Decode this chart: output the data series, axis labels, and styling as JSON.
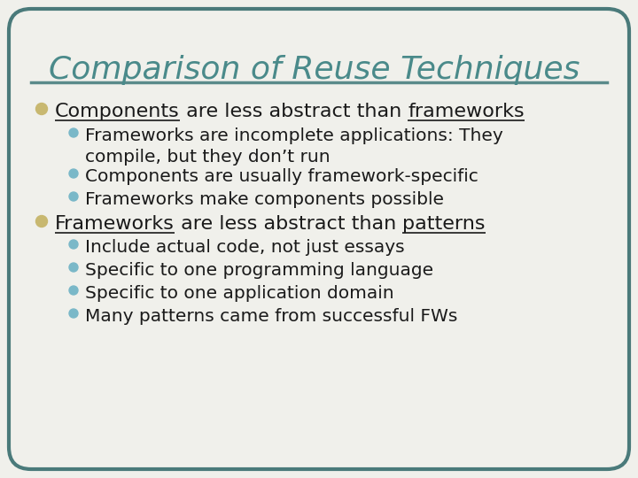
{
  "title": "Comparison of Reuse Techniques",
  "title_color": "#4a8a8a",
  "title_fontsize": 26,
  "background_color": "#f0f0eb",
  "border_color": "#4a7a7a",
  "divider_color": "#5a8a8a",
  "bullet1_color": "#c8b870",
  "bullet2_color": "#7ab8c8",
  "sub_bullets1": [
    "Frameworks are incomplete applications: They",
    "   compile, but they don’t run",
    "Components are usually framework-specific",
    "Frameworks make components possible"
  ],
  "sub_bullets2": [
    "Include actual code, not just essays",
    "Specific to one programming language",
    "Specific to one application domain",
    "Many patterns came from successful FWs"
  ],
  "text_color": "#1a1a1a",
  "main_fontsize": 16,
  "sub_fontsize": 14.5
}
